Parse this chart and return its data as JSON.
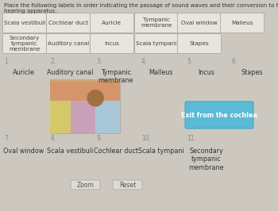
{
  "title_line1": "Place the following labels in order indicating the passage of sound waves and their conversion to fluid waves through the ear and",
  "title_line2": "hearing apparatus.",
  "bg_color": "#cdc8bf",
  "box_color": "#e8e4de",
  "box_edge": "#b0a898",
  "box_text_color": "#555555",
  "blue_box_color": "#5bbad5",
  "blue_box_text": "Exit from the cochlea",
  "drag_row1": [
    "Scala vestibuli",
    "Cochlear duct",
    "Auricle",
    "Tympanic\nmembrane",
    "Oval window",
    "Malleus"
  ],
  "drag_row2": [
    "Secondary\ntympanic\nmembrane",
    "Auditory canal",
    "Incus",
    "Scala tympani",
    "Stapes"
  ],
  "answer_nums": [
    "1.",
    "2.",
    "3.",
    "4.",
    "5.",
    "6.",
    "7.",
    "8.",
    "9.",
    "10.",
    "11."
  ],
  "answer_texts": [
    "Auricle",
    "Auditory canal",
    "Tympanic\nmembrane",
    "Malleus",
    "Incus",
    "Stapes",
    "Oval window",
    "Scala vestibuli",
    "Cochlear duct",
    "Scala tympani",
    "Secondary\ntympanic\nmembrane"
  ],
  "zoom_btn": "Zoom",
  "reset_btn": "Reset"
}
